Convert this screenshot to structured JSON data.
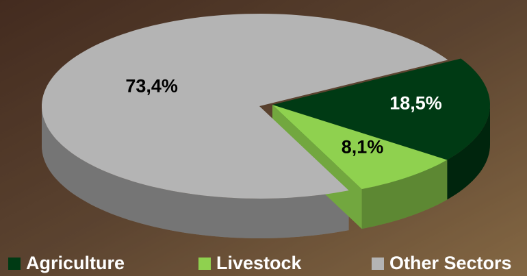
{
  "chart_data": {
    "type": "pie3d",
    "categories": [
      "Agriculture",
      "Livestock",
      "Other Sectors"
    ],
    "values": [
      18.5,
      8.1,
      73.4
    ],
    "value_labels": [
      "18,5%",
      "8,1%",
      "73,4%"
    ],
    "colors": [
      "#003a14",
      "#8fd14f",
      "#b4b4b4"
    ],
    "legend": "bottom"
  }
}
